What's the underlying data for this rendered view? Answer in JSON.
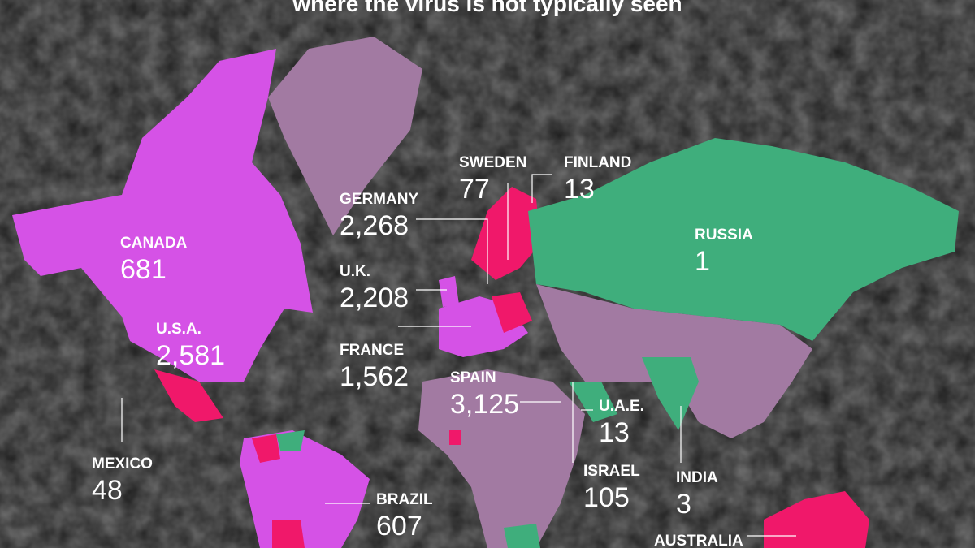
{
  "title": "where the virus is not typically seen",
  "countries": [
    {
      "name": "CANADA",
      "value": "681"
    },
    {
      "name": "U.S.A.",
      "value": "2,581"
    },
    {
      "name": "MEXICO",
      "value": "48"
    },
    {
      "name": "BRAZIL",
      "value": "607"
    },
    {
      "name": "GERMANY",
      "value": "2,268"
    },
    {
      "name": "U.K.",
      "value": "2,208"
    },
    {
      "name": "FRANCE",
      "value": "1,562"
    },
    {
      "name": "SPAIN",
      "value": "3,125"
    },
    {
      "name": "SWEDEN",
      "value": "77"
    },
    {
      "name": "FINLAND",
      "value": "13"
    },
    {
      "name": "RUSSIA",
      "value": "1"
    },
    {
      "name": "U.A.E.",
      "value": "13"
    },
    {
      "name": "ISRAEL",
      "value": "105"
    },
    {
      "name": "INDIA",
      "value": "3"
    },
    {
      "name": "AUSTRALIA"
    }
  ]
}
